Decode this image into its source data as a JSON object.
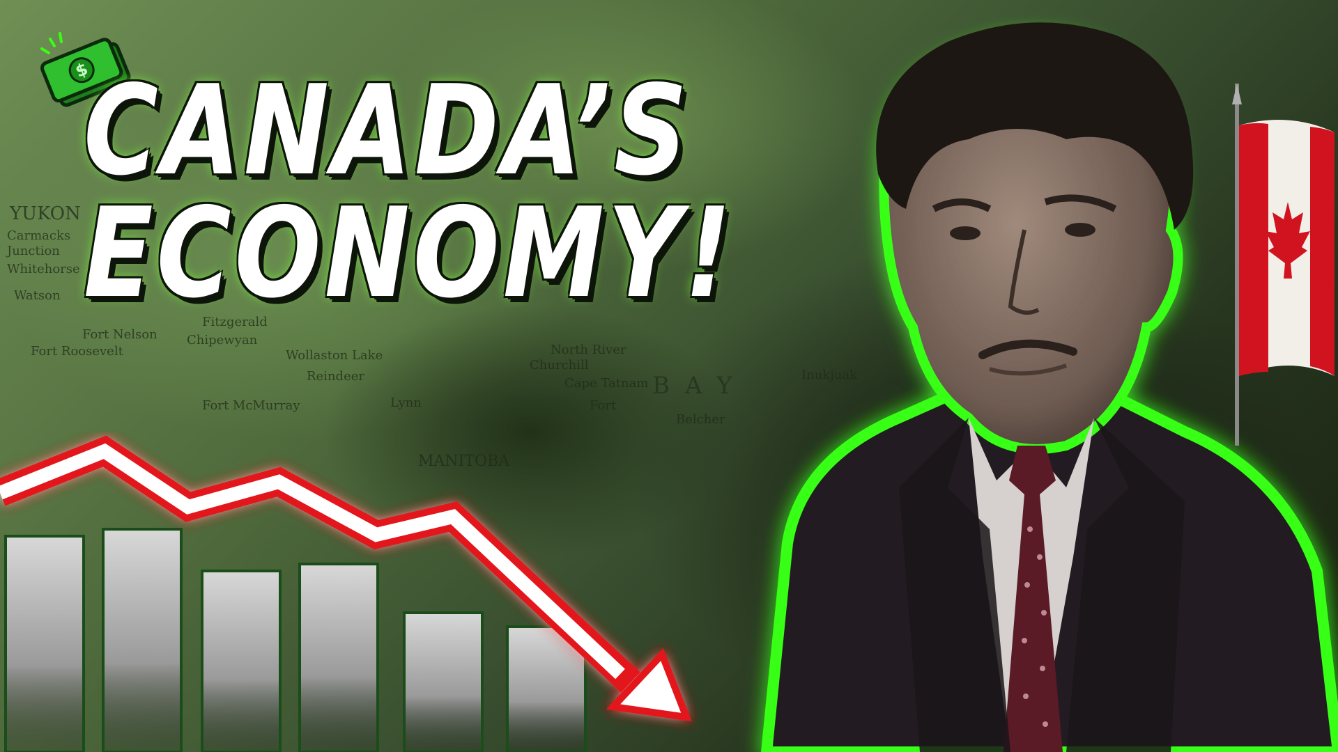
{
  "headline": {
    "line1": "CANADA’S",
    "line2": "ECONOMY!"
  },
  "map_labels": [
    "YUKON",
    "Carmacks",
    "Junction",
    "Whitehorse",
    "Watson",
    "Fort Nelson",
    "Fort Roosevelt",
    "Fitzgerald",
    "Chipewyan",
    "Wollaston Lake",
    "Reindeer",
    "Lynn",
    "Fort McMurray",
    "MANITOBA",
    "Churchill",
    "North River",
    "Cape Tatnam",
    "Fort",
    "BAY",
    "Belcher",
    "Inukjuak"
  ],
  "colors": {
    "glow_green": "#39ff14",
    "arrow_red": "#e3121b",
    "headline_white": "#ffffff",
    "map_green": "#5f7f48"
  },
  "icons": {
    "money": "money-bills-icon",
    "chart": "declining-bar-chart-with-arrow",
    "flag": "canada-flag"
  }
}
